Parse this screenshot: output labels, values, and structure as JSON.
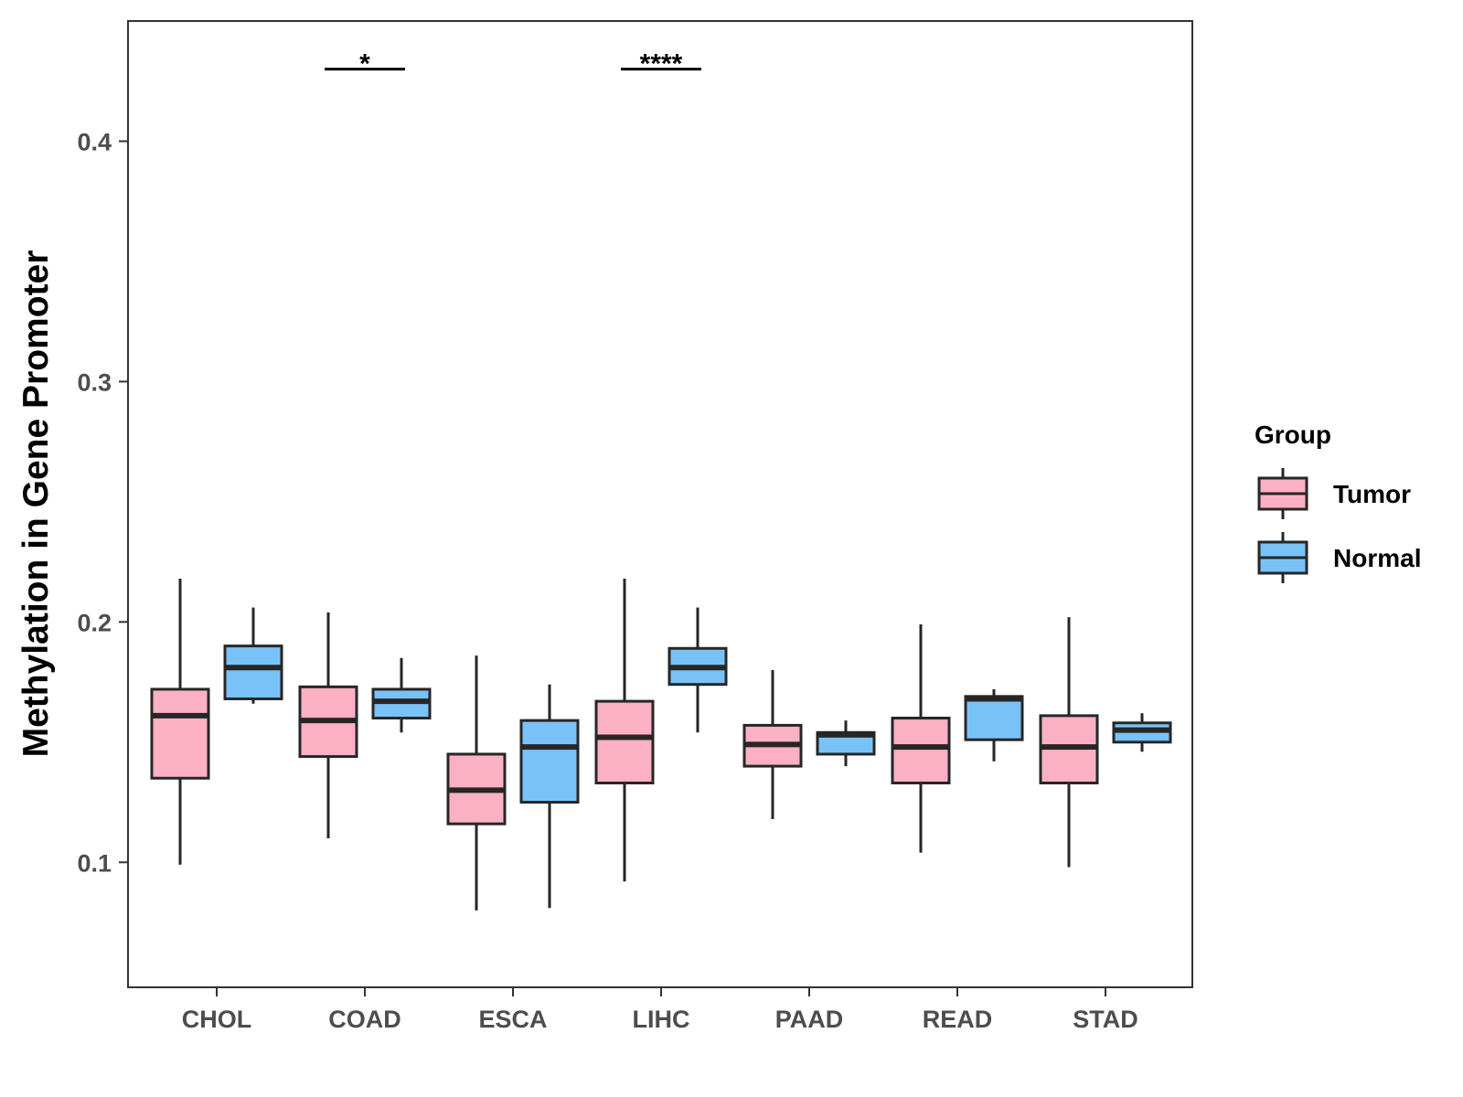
{
  "chart_data": {
    "type": "boxplot",
    "title": "",
    "xlabel": "",
    "ylabel": "Methylation in Gene Promoter",
    "ylim": [
      0.048,
      0.45
    ],
    "yticks": [
      0.1,
      0.2,
      0.3,
      0.4
    ],
    "ytick_labels": [
      "0.1",
      "0.2",
      "0.3",
      "0.4"
    ],
    "categories": [
      "CHOL",
      "COAD",
      "ESCA",
      "LIHC",
      "PAAD",
      "READ",
      "STAD"
    ],
    "legend": {
      "title": "Group",
      "position": "right",
      "entries": [
        {
          "name": "Tumor",
          "color": "#fcb0c3"
        },
        {
          "name": "Normal",
          "color": "#79c2f8"
        }
      ]
    },
    "series": [
      {
        "name": "Tumor",
        "color": "#fcb0c3",
        "boxes": [
          {
            "category": "CHOL",
            "whisker_low": 0.099,
            "q1": 0.135,
            "median": 0.161,
            "q3": 0.172,
            "whisker_high": 0.218
          },
          {
            "category": "COAD",
            "whisker_low": 0.11,
            "q1": 0.144,
            "median": 0.159,
            "q3": 0.173,
            "whisker_high": 0.204
          },
          {
            "category": "ESCA",
            "whisker_low": 0.08,
            "q1": 0.116,
            "median": 0.13,
            "q3": 0.145,
            "whisker_high": 0.186
          },
          {
            "category": "LIHC",
            "whisker_low": 0.092,
            "q1": 0.133,
            "median": 0.152,
            "q3": 0.167,
            "whisker_high": 0.218
          },
          {
            "category": "PAAD",
            "whisker_low": 0.118,
            "q1": 0.14,
            "median": 0.149,
            "q3": 0.157,
            "whisker_high": 0.18
          },
          {
            "category": "READ",
            "whisker_low": 0.104,
            "q1": 0.133,
            "median": 0.148,
            "q3": 0.16,
            "whisker_high": 0.199
          },
          {
            "category": "STAD",
            "whisker_low": 0.098,
            "q1": 0.133,
            "median": 0.148,
            "q3": 0.161,
            "whisker_high": 0.202
          }
        ]
      },
      {
        "name": "Normal",
        "color": "#79c2f8",
        "boxes": [
          {
            "category": "CHOL",
            "whisker_low": 0.166,
            "q1": 0.168,
            "median": 0.181,
            "q3": 0.19,
            "whisker_high": 0.206
          },
          {
            "category": "COAD",
            "whisker_low": 0.154,
            "q1": 0.16,
            "median": 0.167,
            "q3": 0.172,
            "whisker_high": 0.185
          },
          {
            "category": "ESCA",
            "whisker_low": 0.081,
            "q1": 0.125,
            "median": 0.148,
            "q3": 0.159,
            "whisker_high": 0.174
          },
          {
            "category": "LIHC",
            "whisker_low": 0.154,
            "q1": 0.174,
            "median": 0.181,
            "q3": 0.189,
            "whisker_high": 0.206
          },
          {
            "category": "PAAD",
            "whisker_low": 0.14,
            "q1": 0.145,
            "median": 0.153,
            "q3": 0.154,
            "whisker_high": 0.159
          },
          {
            "category": "READ",
            "whisker_low": 0.142,
            "q1": 0.151,
            "median": 0.168,
            "q3": 0.169,
            "whisker_high": 0.172
          },
          {
            "category": "STAD",
            "whisker_low": 0.146,
            "q1": 0.15,
            "median": 0.155,
            "q3": 0.158,
            "whisker_high": 0.162
          }
        ]
      }
    ],
    "annotations": [
      {
        "category": "COAD",
        "label": "*",
        "y": 0.43
      },
      {
        "category": "LIHC",
        "label": "****",
        "y": 0.43
      }
    ],
    "grid": false
  }
}
